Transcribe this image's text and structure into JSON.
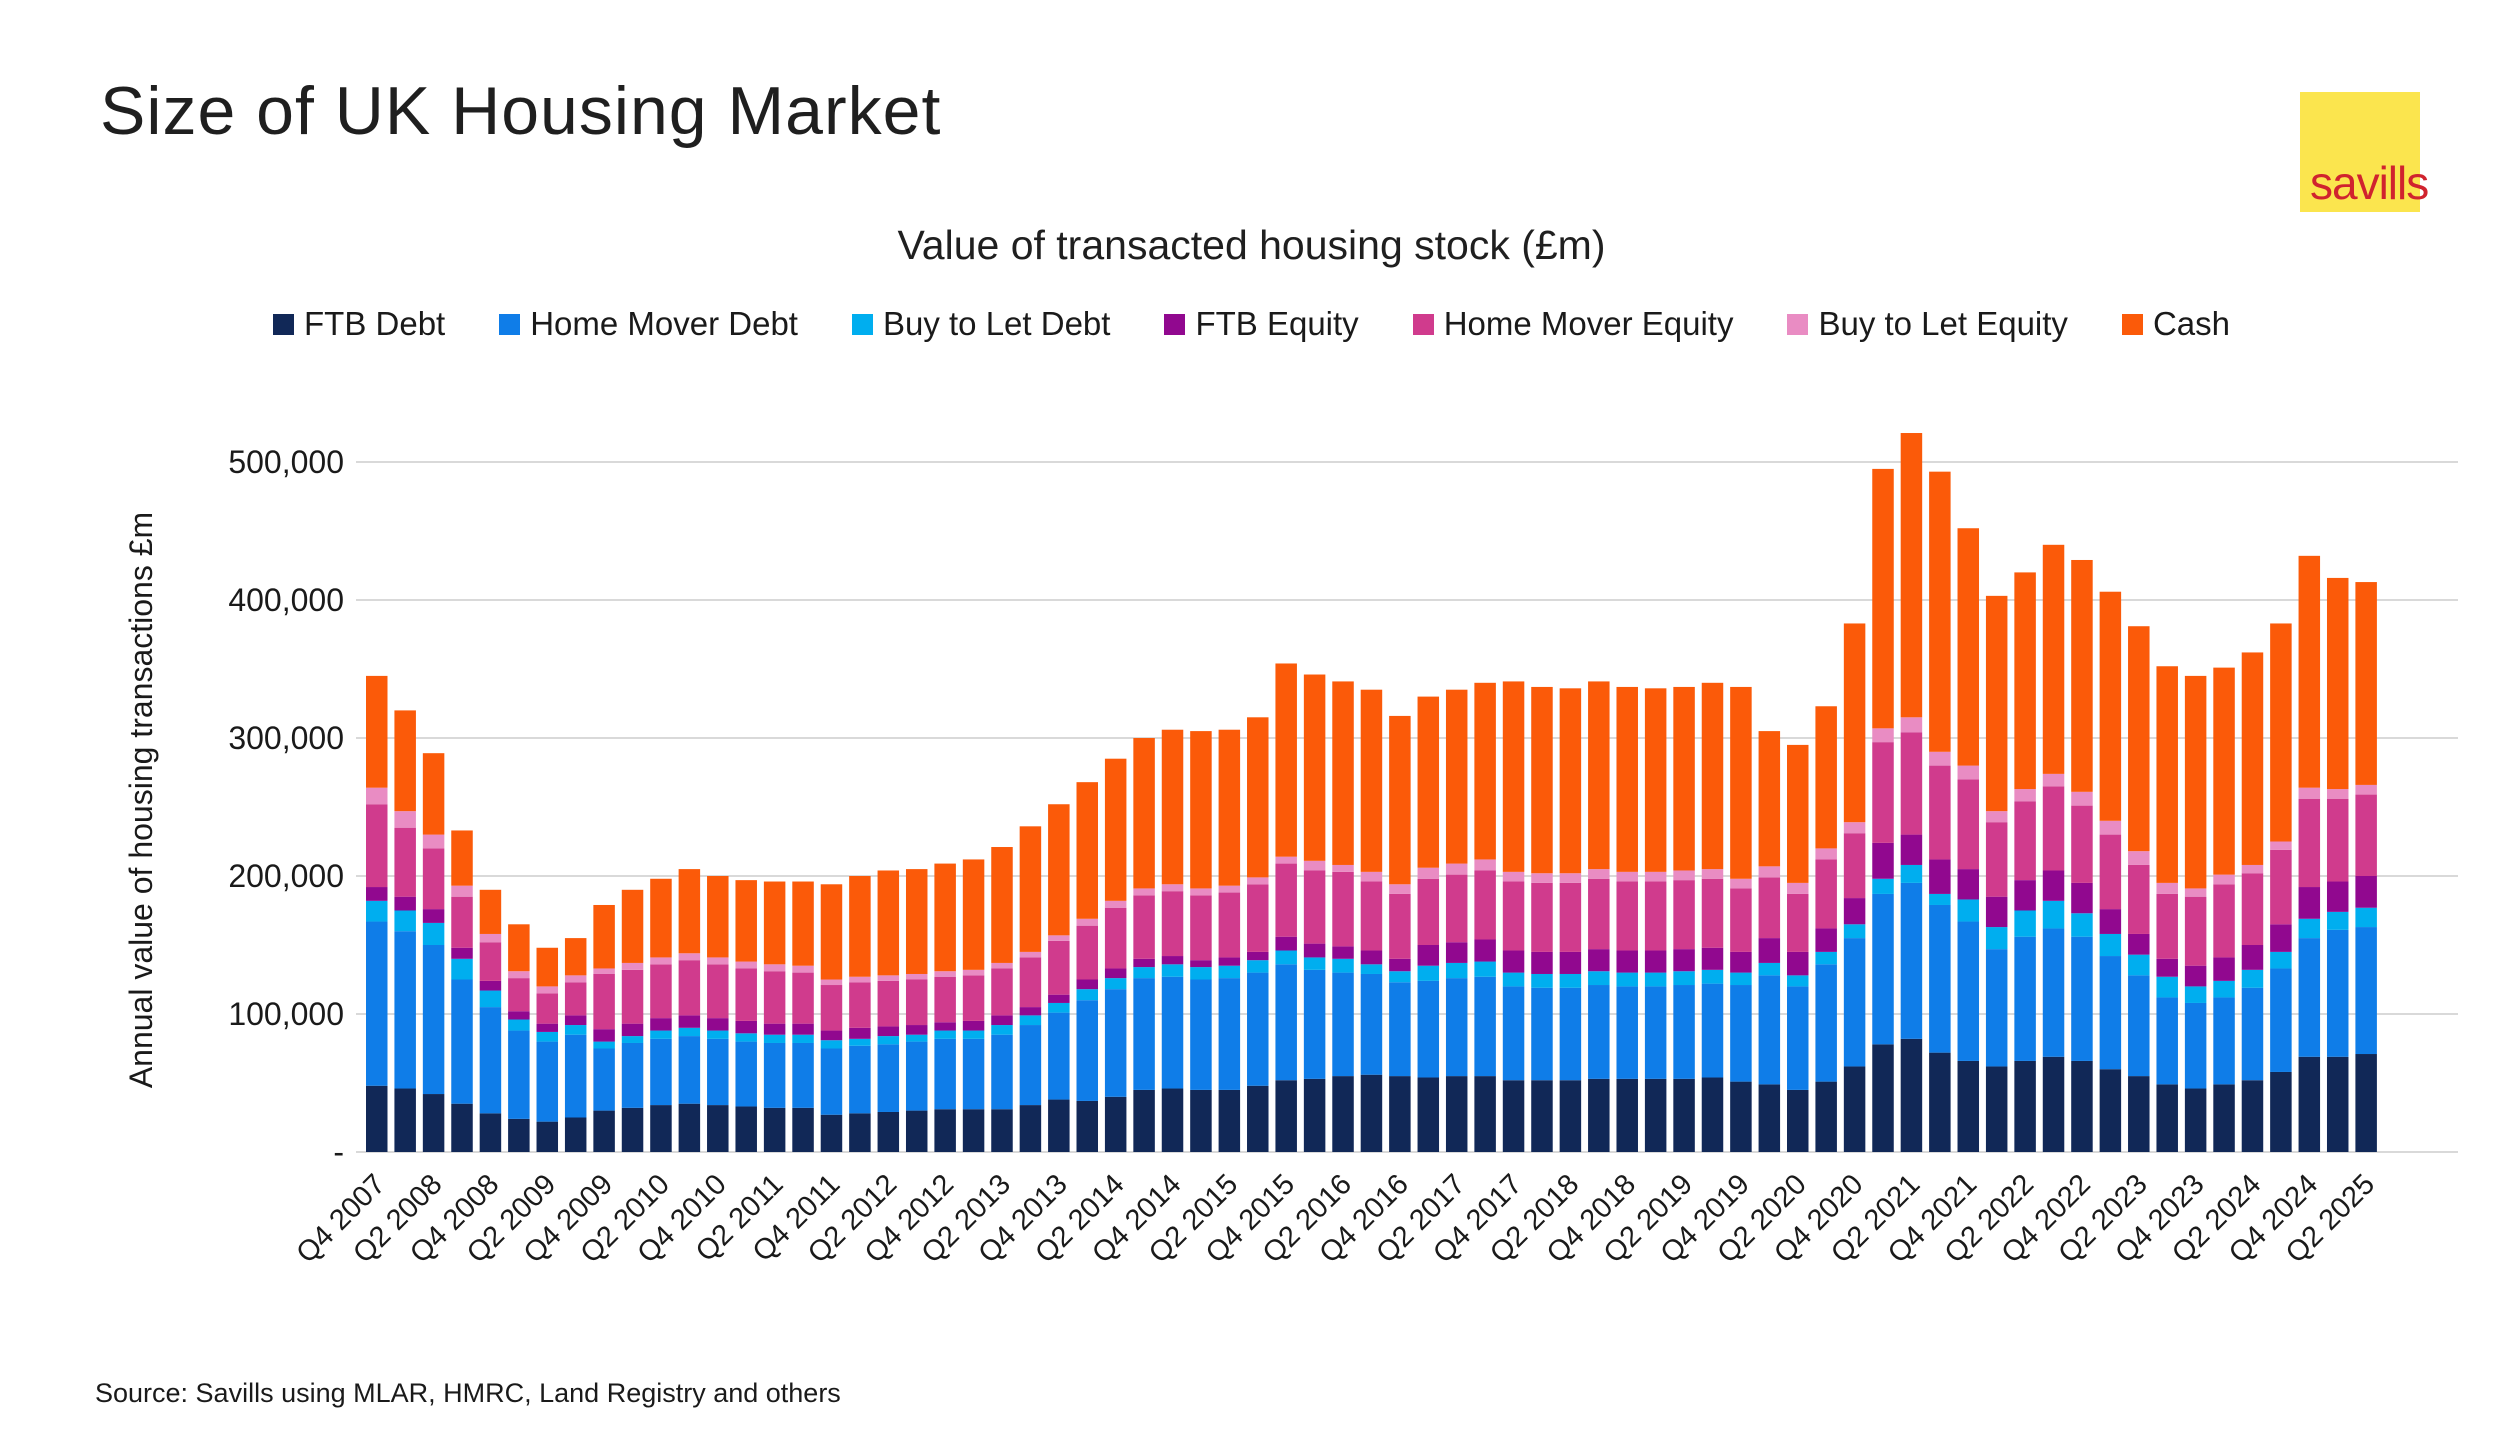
{
  "header": {
    "title": "Size of UK Housing Market"
  },
  "logo": {
    "text": "savills",
    "background_color": "#FBE54E",
    "text_color": "#D0232E"
  },
  "source": {
    "text": "Source: Savills using MLAR, HMRC, Land Registry and others"
  },
  "chart_data": {
    "type": "bar",
    "stacked": true,
    "title": "Value of transacted housing stock (£m)",
    "xlabel": "",
    "ylabel": "Annual value of housing transactions £m",
    "ylim": [
      0,
      500000
    ],
    "ytick_step": 100000,
    "ytick_labels": [
      "-",
      "100,000",
      "200,000",
      "300,000",
      "400,000",
      "500,000"
    ],
    "grid": true,
    "gridline_color": "#D9D9D9",
    "legend_position": "top",
    "xtick_every": 2,
    "categories": [
      "Q4 2007",
      "Q1 2008",
      "Q2 2008",
      "Q3 2008",
      "Q4 2008",
      "Q1 2009",
      "Q2 2009",
      "Q3 2009",
      "Q4 2009",
      "Q1 2010",
      "Q2 2010",
      "Q3 2010",
      "Q4 2010",
      "Q1 2011",
      "Q2 2011",
      "Q3 2011",
      "Q4 2011",
      "Q1 2012",
      "Q2 2012",
      "Q3 2012",
      "Q4 2012",
      "Q1 2013",
      "Q2 2013",
      "Q3 2013",
      "Q4 2013",
      "Q1 2014",
      "Q2 2014",
      "Q3 2014",
      "Q4 2014",
      "Q1 2015",
      "Q2 2015",
      "Q3 2015",
      "Q4 2015",
      "Q1 2016",
      "Q2 2016",
      "Q3 2016",
      "Q4 2016",
      "Q1 2017",
      "Q2 2017",
      "Q3 2017",
      "Q4 2017",
      "Q1 2018",
      "Q2 2018",
      "Q3 2018",
      "Q4 2018",
      "Q1 2019",
      "Q2 2019",
      "Q3 2019",
      "Q4 2019",
      "Q1 2020",
      "Q2 2020",
      "Q3 2020",
      "Q4 2020",
      "Q1 2021",
      "Q2 2021",
      "Q3 2021",
      "Q4 2021",
      "Q1 2022",
      "Q2 2022",
      "Q3 2022",
      "Q4 2022",
      "Q1 2023",
      "Q2 2023",
      "Q3 2023",
      "Q4 2023",
      "Q1 2024",
      "Q2 2024",
      "Q3 2024",
      "Q4 2024",
      "Q1 2025",
      "Q2 2025"
    ],
    "series": [
      {
        "name": "FTB Debt",
        "color": "#112857",
        "values": [
          48000,
          46000,
          42000,
          35000,
          28000,
          24000,
          22000,
          25000,
          30000,
          32000,
          34000,
          35000,
          34000,
          33000,
          32000,
          32000,
          27000,
          28000,
          29000,
          30000,
          31000,
          31000,
          31000,
          34000,
          38000,
          37000,
          40000,
          45000,
          46000,
          45000,
          45000,
          48000,
          52000,
          53000,
          55000,
          56000,
          55000,
          54000,
          55000,
          55000,
          52000,
          52000,
          52000,
          53000,
          53000,
          53000,
          53000,
          54000,
          51000,
          49000,
          45000,
          51000,
          62000,
          78000,
          82000,
          72000,
          66000,
          62000,
          66000,
          69000,
          66000,
          60000,
          55000,
          49000,
          46000,
          49000,
          52000,
          58000,
          69000,
          69000,
          71000
        ]
      },
      {
        "name": "Home Mover Debt",
        "color": "#0F7DE8",
        "values": [
          119000,
          114000,
          108000,
          90000,
          77000,
          64000,
          58000,
          60000,
          45000,
          47000,
          48000,
          49000,
          48000,
          47000,
          47000,
          47000,
          48000,
          49000,
          49000,
          50000,
          51000,
          51000,
          54000,
          58000,
          63000,
          73000,
          78000,
          81000,
          81000,
          80000,
          81000,
          82000,
          84000,
          79000,
          75000,
          73000,
          68000,
          70000,
          71000,
          72000,
          68000,
          67000,
          67000,
          68000,
          67000,
          67000,
          68000,
          68000,
          70000,
          79000,
          75000,
          85000,
          93000,
          109000,
          113000,
          107000,
          101000,
          85000,
          90000,
          93000,
          90000,
          82000,
          73000,
          63000,
          62000,
          63000,
          67000,
          75000,
          86000,
          92000,
          92000
        ]
      },
      {
        "name": "Buy to Let Debt",
        "color": "#00AEEF",
        "values": [
          15000,
          15000,
          16000,
          15000,
          12000,
          8000,
          7000,
          7000,
          5000,
          5000,
          6000,
          6000,
          6000,
          6000,
          6000,
          6000,
          6000,
          5000,
          6000,
          5000,
          6000,
          6000,
          7000,
          7000,
          7000,
          8000,
          8000,
          8000,
          9000,
          9000,
          9000,
          9000,
          10000,
          9000,
          10000,
          7000,
          8000,
          11000,
          11000,
          11000,
          10000,
          10000,
          10000,
          10000,
          10000,
          10000,
          10000,
          10000,
          9000,
          9000,
          8000,
          9000,
          10000,
          11000,
          13000,
          8000,
          16000,
          16000,
          19000,
          20000,
          17000,
          16000,
          15000,
          15000,
          12000,
          12000,
          13000,
          12000,
          14000,
          13000,
          14000
        ]
      },
      {
        "name": "FTB Equity",
        "color": "#91088F",
        "values": [
          10000,
          10000,
          10000,
          8000,
          7000,
          6000,
          6000,
          7000,
          9000,
          9000,
          9000,
          9000,
          9000,
          9000,
          8000,
          8000,
          7000,
          8000,
          7000,
          7000,
          6000,
          7000,
          7000,
          6000,
          6000,
          7000,
          7000,
          6000,
          6000,
          5000,
          6000,
          6000,
          10000,
          10000,
          9000,
          10000,
          9000,
          15000,
          15000,
          16000,
          16000,
          16000,
          16000,
          16000,
          16000,
          16000,
          16000,
          16000,
          15000,
          18000,
          17000,
          17000,
          19000,
          26000,
          22000,
          25000,
          22000,
          22000,
          22000,
          22000,
          22000,
          18000,
          15000,
          13000,
          15000,
          17000,
          18000,
          20000,
          23000,
          22000,
          23000
        ]
      },
      {
        "name": "Home Mover Equity",
        "color": "#D03B8D",
        "values": [
          60000,
          50000,
          44000,
          37000,
          28000,
          24000,
          22000,
          24000,
          40000,
          39000,
          39000,
          40000,
          39000,
          38000,
          38000,
          37000,
          33000,
          33000,
          33000,
          33000,
          33000,
          33000,
          34000,
          36000,
          39000,
          39000,
          44000,
          46000,
          47000,
          47000,
          47000,
          49000,
          53000,
          53000,
          54000,
          50000,
          47000,
          48000,
          49000,
          50000,
          50000,
          50000,
          50000,
          51000,
          50000,
          50000,
          50000,
          50000,
          46000,
          44000,
          42000,
          50000,
          47000,
          73000,
          74000,
          68000,
          65000,
          54000,
          57000,
          61000,
          56000,
          54000,
          50000,
          47000,
          50000,
          53000,
          52000,
          54000,
          64000,
          60000,
          59000
        ]
      },
      {
        "name": "Buy to Let Equity",
        "color": "#E98CC3",
        "values": [
          12000,
          12000,
          10000,
          8000,
          6000,
          5000,
          5000,
          5000,
          4000,
          5000,
          5000,
          5000,
          5000,
          5000,
          5000,
          5000,
          4000,
          4000,
          4000,
          4000,
          4000,
          4000,
          4000,
          4000,
          4000,
          5000,
          5000,
          5000,
          5000,
          5000,
          5000,
          5000,
          5000,
          7000,
          5000,
          7000,
          7000,
          8000,
          8000,
          8000,
          7000,
          7000,
          7000,
          7000,
          7000,
          7000,
          7000,
          7000,
          7000,
          8000,
          8000,
          8000,
          8000,
          10000,
          11000,
          10000,
          10000,
          8000,
          9000,
          9000,
          10000,
          10000,
          10000,
          8000,
          6000,
          7000,
          6000,
          6000,
          8000,
          7000,
          7000
        ]
      },
      {
        "name": "Cash",
        "color": "#FB5A09",
        "values": [
          81000,
          73000,
          59000,
          40000,
          32000,
          34000,
          28000,
          27000,
          46000,
          53000,
          57000,
          61000,
          59000,
          59000,
          60000,
          61000,
          69000,
          73000,
          76000,
          76000,
          78000,
          80000,
          84000,
          91000,
          95000,
          99000,
          103000,
          109000,
          112000,
          114000,
          113000,
          116000,
          140000,
          135000,
          133000,
          132000,
          122000,
          124000,
          126000,
          128000,
          138000,
          135000,
          134000,
          136000,
          134000,
          133000,
          133000,
          135000,
          139000,
          98000,
          100000,
          103000,
          144000,
          188000,
          206000,
          203000,
          172000,
          156000,
          157000,
          166000,
          168000,
          166000,
          163000,
          157000,
          154000,
          150000,
          154000,
          158000,
          168000,
          153000,
          147000
        ]
      }
    ]
  }
}
